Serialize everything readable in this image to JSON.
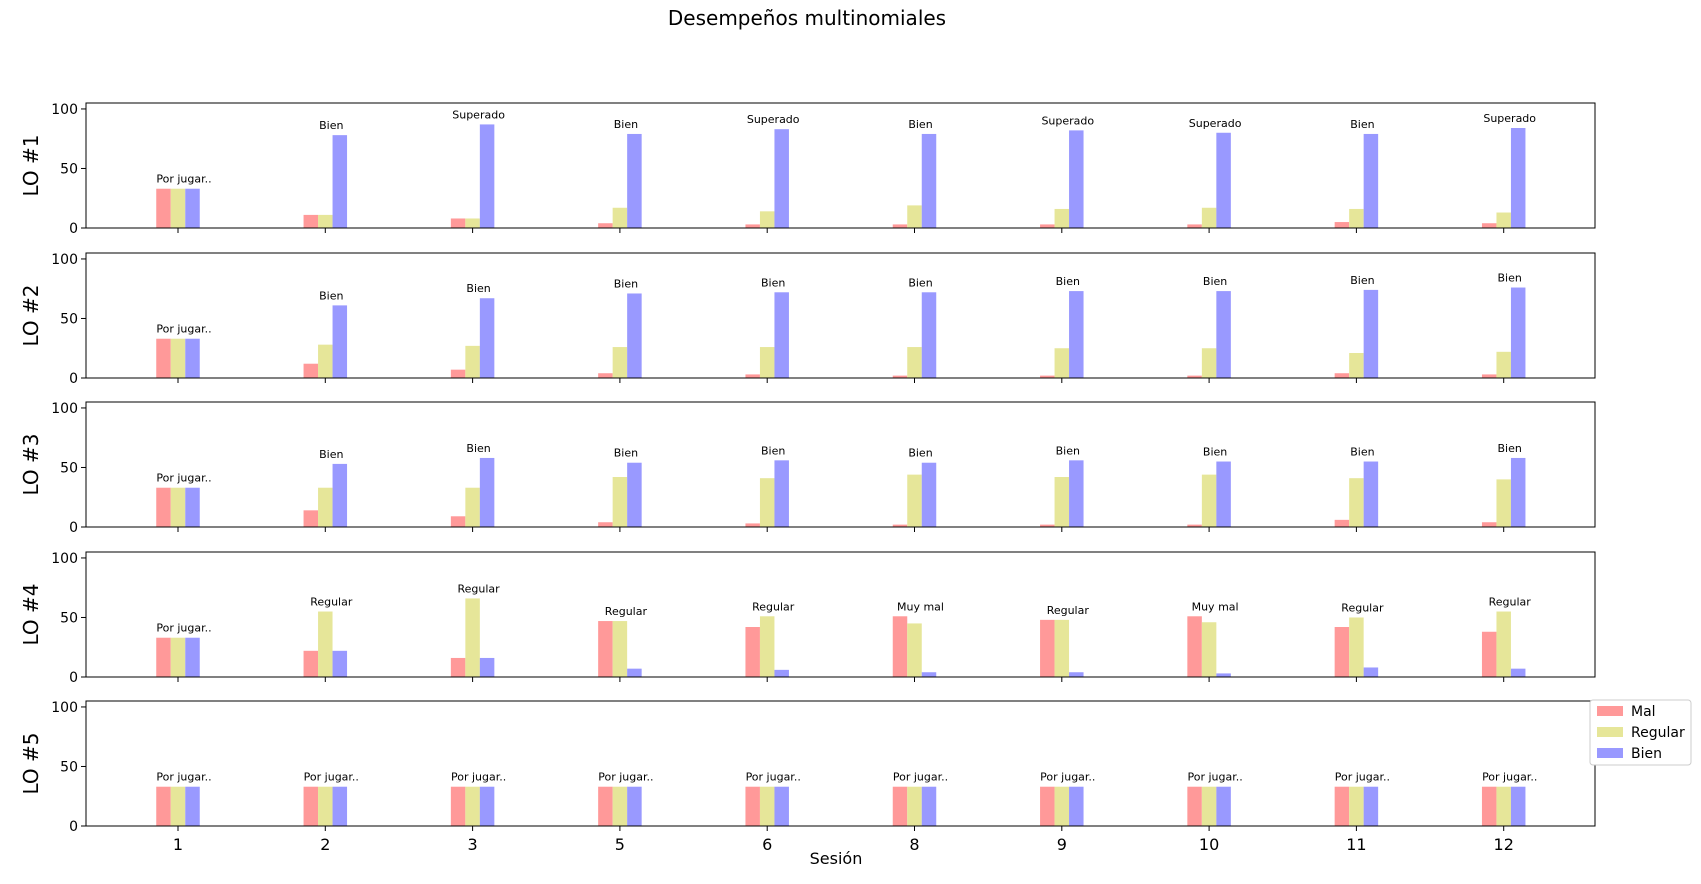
{
  "chart_data": {
    "type": "bar",
    "title": "Desempeños multinomiales",
    "xlabel": "Sesión",
    "categories": [
      "1",
      "2",
      "3",
      "5",
      "6",
      "8",
      "9",
      "10",
      "11",
      "12"
    ],
    "ylim": [
      0,
      105
    ],
    "yticks": [
      0,
      50,
      100
    ],
    "grid": false,
    "legend_position": "right",
    "series_names": [
      "Mal",
      "Regular",
      "Bien"
    ],
    "colors": {
      "Mal": "#FF9999",
      "Regular": "#E6E699",
      "Bien": "#9999FF"
    },
    "subplots": [
      {
        "ylabel": "LO #1",
        "series": [
          {
            "name": "Mal",
            "values": [
              33,
              11,
              8,
              4,
              3,
              3,
              3,
              3,
              5,
              4
            ]
          },
          {
            "name": "Regular",
            "values": [
              33,
              11,
              8,
              17,
              14,
              19,
              16,
              17,
              16,
              13
            ]
          },
          {
            "name": "Bien",
            "values": [
              33,
              78,
              87,
              79,
              83,
              79,
              82,
              80,
              79,
              84
            ]
          }
        ],
        "annotations": [
          "Por jugar..",
          "Bien",
          "Superado",
          "Bien",
          "Superado",
          "Bien",
          "Superado",
          "Superado",
          "Bien",
          "Superado"
        ]
      },
      {
        "ylabel": "LO #2",
        "series": [
          {
            "name": "Mal",
            "values": [
              33,
              12,
              7,
              4,
              3,
              2,
              2,
              2,
              4,
              3
            ]
          },
          {
            "name": "Regular",
            "values": [
              33,
              28,
              27,
              26,
              26,
              26,
              25,
              25,
              21,
              22
            ]
          },
          {
            "name": "Bien",
            "values": [
              33,
              61,
              67,
              71,
              72,
              72,
              73,
              73,
              74,
              76
            ]
          }
        ],
        "annotations": [
          "Por jugar..",
          "Bien",
          "Bien",
          "Bien",
          "Bien",
          "Bien",
          "Bien",
          "Bien",
          "Bien",
          "Bien"
        ]
      },
      {
        "ylabel": "LO #3",
        "series": [
          {
            "name": "Mal",
            "values": [
              33,
              14,
              9,
              4,
              3,
              2,
              2,
              2,
              6,
              4
            ]
          },
          {
            "name": "Regular",
            "values": [
              33,
              33,
              33,
              42,
              41,
              44,
              42,
              44,
              41,
              40
            ]
          },
          {
            "name": "Bien",
            "values": [
              33,
              53,
              58,
              54,
              56,
              54,
              56,
              55,
              55,
              58
            ]
          }
        ],
        "annotations": [
          "Por jugar..",
          "Bien",
          "Bien",
          "Bien",
          "Bien",
          "Bien",
          "Bien",
          "Bien",
          "Bien",
          "Bien"
        ]
      },
      {
        "ylabel": "LO #4",
        "series": [
          {
            "name": "Mal",
            "values": [
              33,
              22,
              16,
              47,
              42,
              51,
              48,
              51,
              42,
              38
            ]
          },
          {
            "name": "Regular",
            "values": [
              33,
              55,
              66,
              47,
              51,
              45,
              48,
              46,
              50,
              55
            ]
          },
          {
            "name": "Bien",
            "values": [
              33,
              22,
              16,
              7,
              6,
              4,
              4,
              3,
              8,
              7
            ]
          }
        ],
        "annotations": [
          "Por jugar..",
          "Regular",
          "Regular",
          "Regular",
          "Regular",
          "Muy mal",
          "Regular",
          "Muy mal",
          "Regular",
          "Regular"
        ]
      },
      {
        "ylabel": "LO #5",
        "series": [
          {
            "name": "Mal",
            "values": [
              33,
              33,
              33,
              33,
              33,
              33,
              33,
              33,
              33,
              33
            ]
          },
          {
            "name": "Regular",
            "values": [
              33,
              33,
              33,
              33,
              33,
              33,
              33,
              33,
              33,
              33
            ]
          },
          {
            "name": "Bien",
            "values": [
              33,
              33,
              33,
              33,
              33,
              33,
              33,
              33,
              33,
              33
            ]
          }
        ],
        "annotations": [
          "Por jugar..",
          "Por jugar..",
          "Por jugar..",
          "Por jugar..",
          "Por jugar..",
          "Por jugar..",
          "Por jugar..",
          "Por jugar..",
          "Por jugar..",
          "Por jugar.."
        ]
      }
    ]
  }
}
